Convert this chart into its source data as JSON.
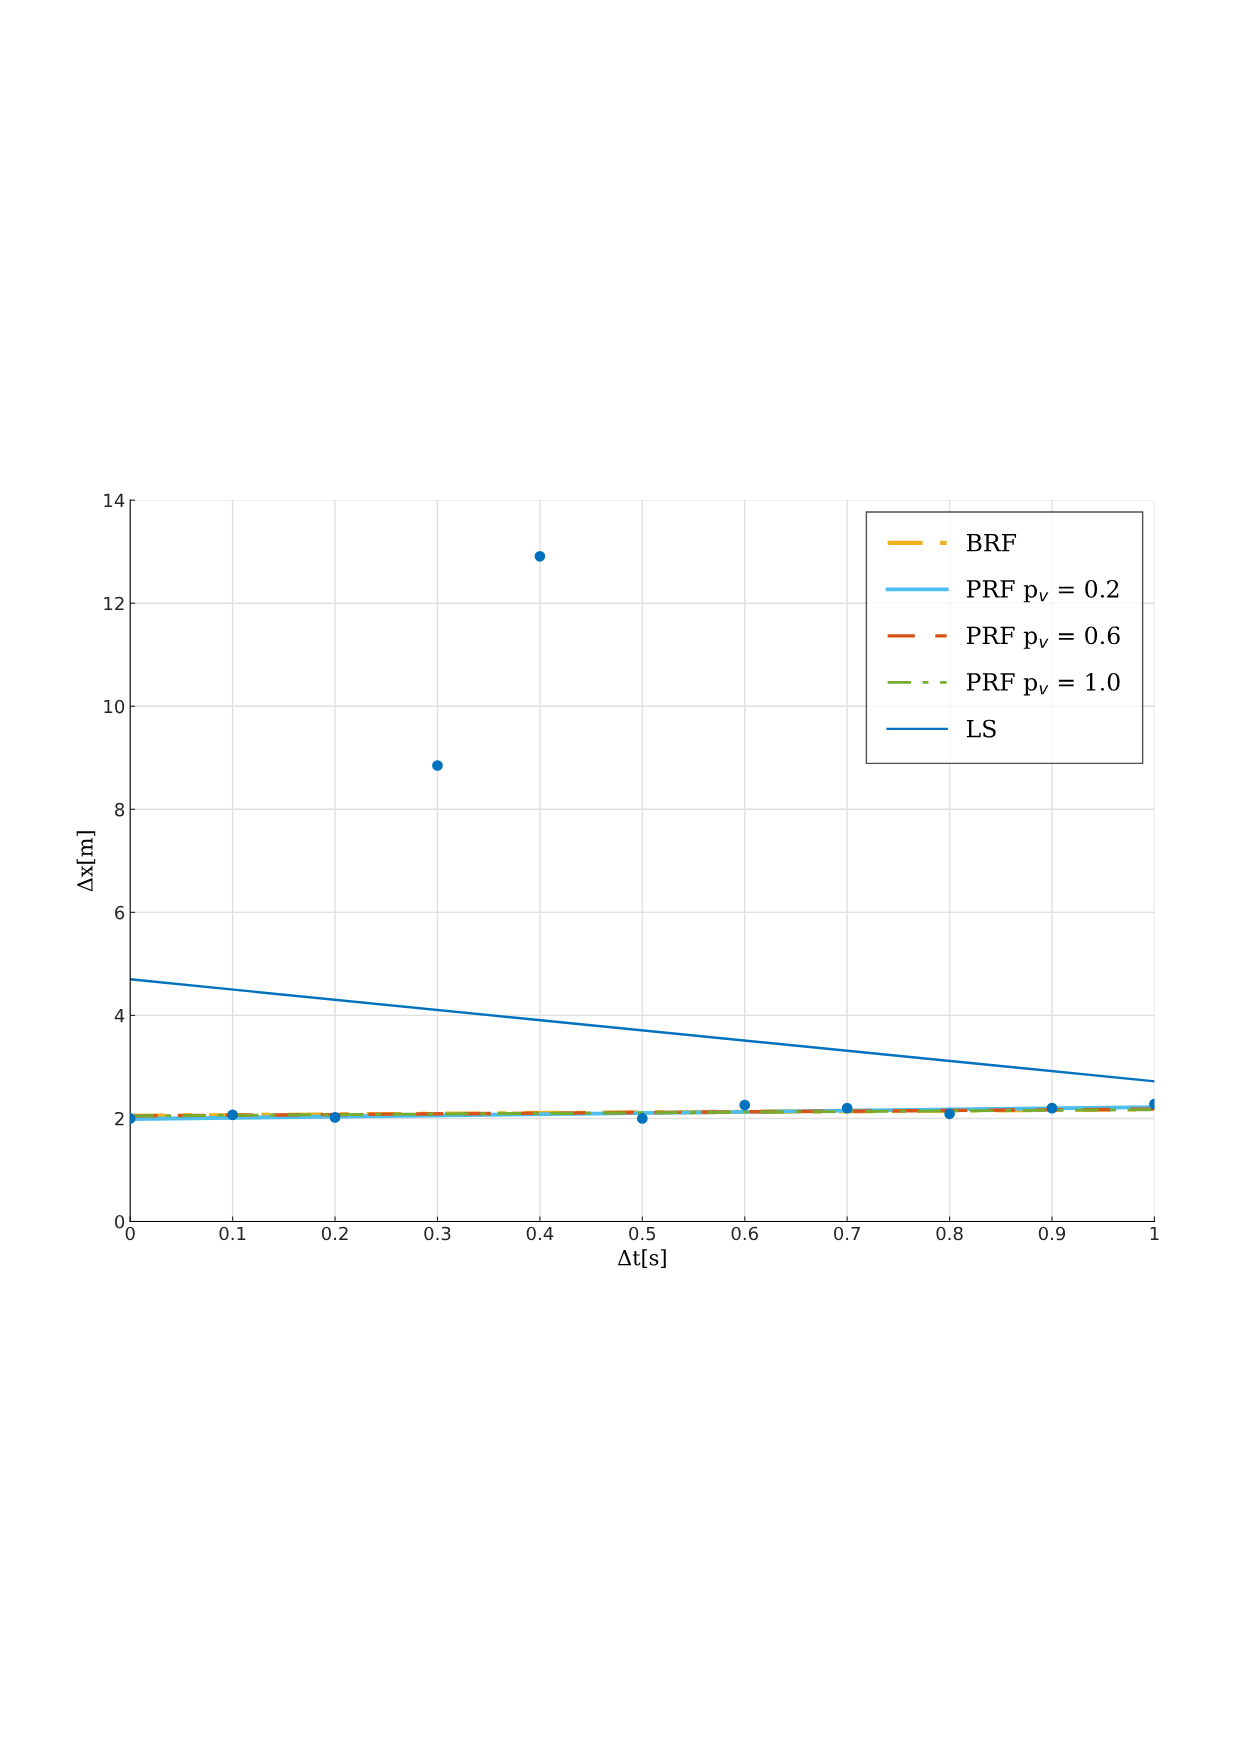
{
  "chart_data": {
    "type": "line",
    "xlabel": "Δt[s]",
    "ylabel": "Δx[m]",
    "xlim": [
      0,
      1
    ],
    "ylim": [
      0,
      14
    ],
    "xticks": [
      0,
      0.1,
      0.2,
      0.3,
      0.4,
      0.5,
      0.6,
      0.7,
      0.8,
      0.9,
      1
    ],
    "yticks": [
      0,
      2,
      4,
      6,
      8,
      10,
      12,
      14
    ],
    "grid": true,
    "legend": "top right",
    "series": [
      {
        "type": "scatter",
        "color": "#0072bd",
        "marker": "circle",
        "x": [
          0,
          0.1,
          0.2,
          0.3,
          0.4,
          0.5,
          0.6,
          0.7,
          0.8,
          0.9,
          1
        ],
        "values": [
          2.0,
          2.07,
          2.02,
          8.85,
          12.91,
          2.0,
          2.26,
          2.2,
          2.09,
          2.2,
          2.28
        ]
      },
      {
        "name": "BRF",
        "color": "#edb120",
        "line_style": "dashdot",
        "x": [
          0,
          1
        ],
        "values": [
          2.05,
          2.18
        ]
      },
      {
        "name": "PRF p$_{v}$ = 0.2",
        "color": "#4dbeee",
        "line_style": "solid",
        "x": [
          0,
          1
        ],
        "values": [
          1.99,
          2.22
        ]
      },
      {
        "name": "PRF p$_{v}$ = 0.6",
        "color": "#d95319",
        "line_style": "dashed",
        "x": [
          0,
          1
        ],
        "values": [
          2.05,
          2.18
        ]
      },
      {
        "name": "PRF p$_{v}$ = 1.0",
        "color": "#77ac30",
        "line_style": "dashdot",
        "x": [
          0,
          1
        ],
        "values": [
          2.05,
          2.17
        ]
      },
      {
        "name": "LS",
        "color": "#0072bd",
        "line_style": "solid",
        "x": [
          0,
          1
        ],
        "values": [
          4.7,
          2.72
        ]
      }
    ]
  }
}
